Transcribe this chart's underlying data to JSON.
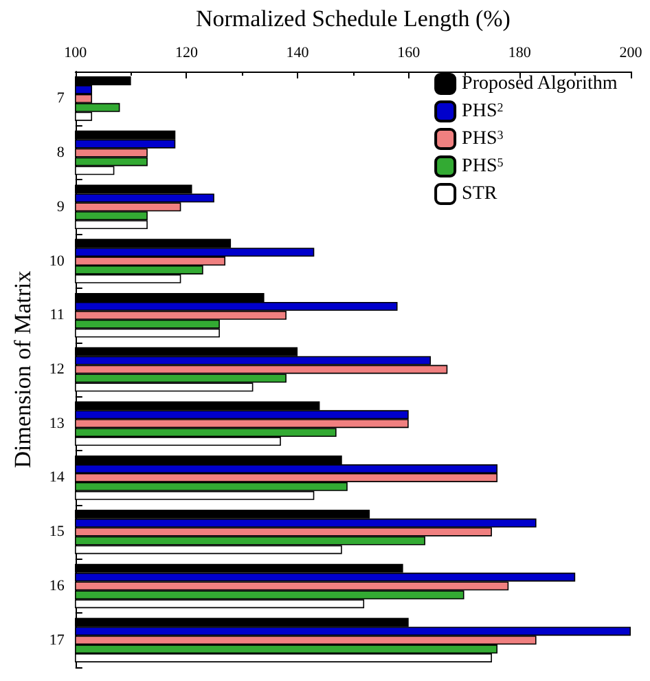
{
  "chart_data": {
    "type": "bar",
    "orientation": "horizontal",
    "xlabel": "Normalized Schedule Length (%)",
    "ylabel": "Dimension of Matrix",
    "categories": [
      "7",
      "8",
      "9",
      "10",
      "11",
      "12",
      "13",
      "14",
      "15",
      "16",
      "17"
    ],
    "series": [
      {
        "name": "Proposed Algorithm",
        "color": "#000000",
        "values": [
          110,
          118,
          121,
          128,
          134,
          140,
          144,
          148,
          153,
          159,
          160
        ]
      },
      {
        "name": "PHS$^{2}$",
        "color": "#0000cc",
        "values": [
          103,
          118,
          125,
          143,
          158,
          164,
          160,
          176,
          183,
          190,
          200
        ]
      },
      {
        "name": "PHS$^{3}$",
        "color": "#f08080",
        "values": [
          103,
          113,
          119,
          127,
          138,
          167,
          160,
          176,
          175,
          178,
          183
        ]
      },
      {
        "name": "PHS$^{5}$",
        "color": "#33aa33",
        "values": [
          108,
          113,
          113,
          123,
          126,
          138,
          147,
          149,
          163,
          170,
          176
        ]
      },
      {
        "name": "STR",
        "color": "#ffffff",
        "values": [
          103,
          107,
          113,
          119,
          126,
          132,
          137,
          143,
          148,
          152,
          175
        ]
      }
    ],
    "xlim": [
      100,
      200
    ],
    "xticks": [
      100,
      120,
      140,
      160,
      180,
      200
    ],
    "grid": false,
    "legend": "top right"
  }
}
